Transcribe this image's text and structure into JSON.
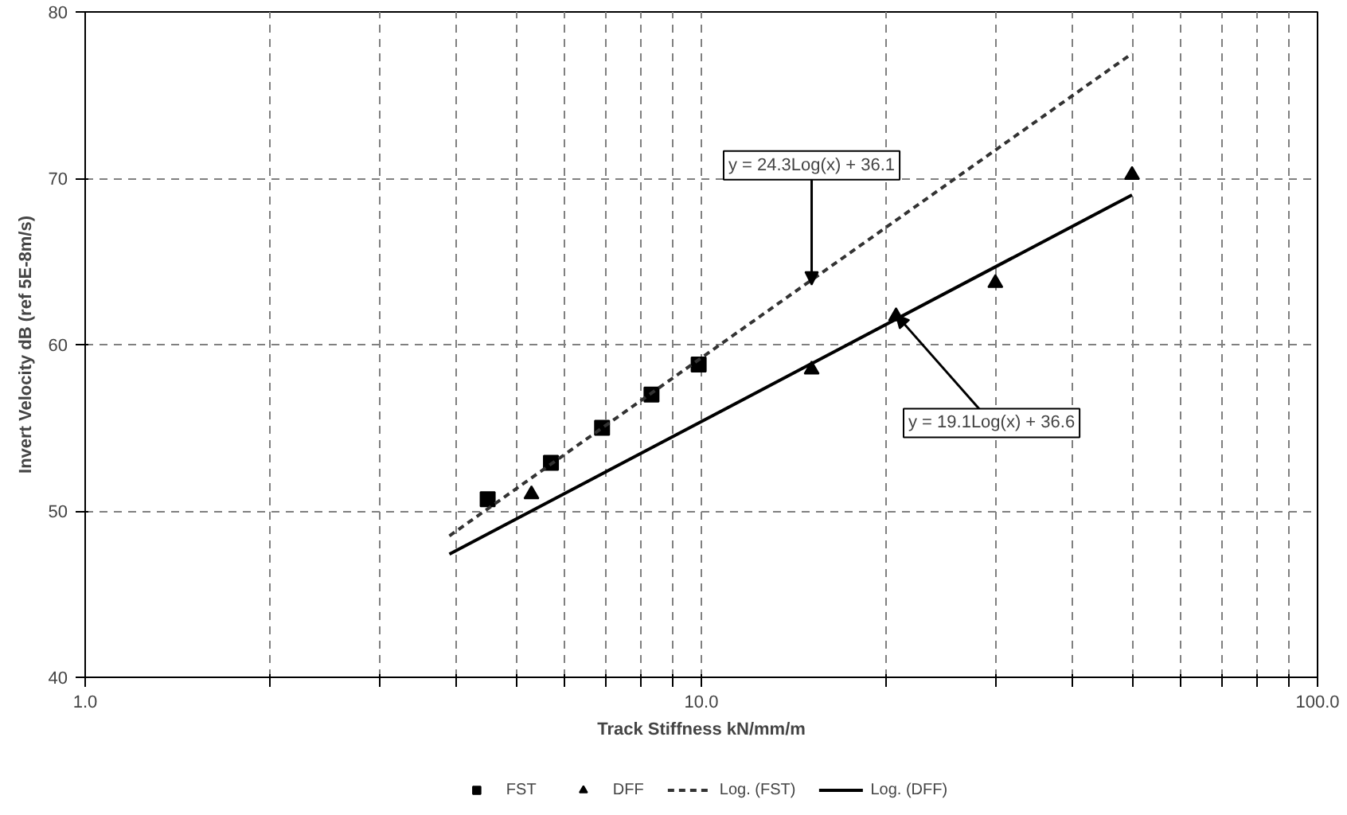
{
  "chart_data": {
    "type": "scatter",
    "xlabel": "Track Stiffness kN/mm/m",
    "ylabel": "Invert Velocity dB (ref 5E-8m/s)",
    "log": "x",
    "xlim": [
      1,
      100
    ],
    "ylim": [
      40,
      80
    ],
    "xticks": [
      {
        "value": 1,
        "label": "1.0"
      },
      {
        "value": 2,
        "label": null
      },
      {
        "value": 3,
        "label": null
      },
      {
        "value": 4,
        "label": null
      },
      {
        "value": 5,
        "label": null
      },
      {
        "value": 6,
        "label": null
      },
      {
        "value": 7,
        "label": null
      },
      {
        "value": 8,
        "label": null
      },
      {
        "value": 9,
        "label": null
      },
      {
        "value": 10,
        "label": "10.0"
      },
      {
        "value": 20,
        "label": null
      },
      {
        "value": 30,
        "label": null
      },
      {
        "value": 40,
        "label": null
      },
      {
        "value": 50,
        "label": null
      },
      {
        "value": 60,
        "label": null
      },
      {
        "value": 70,
        "label": null
      },
      {
        "value": 80,
        "label": null
      },
      {
        "value": 90,
        "label": null
      },
      {
        "value": 100,
        "label": "100.0"
      }
    ],
    "yticks": [
      40,
      50,
      60,
      70,
      80
    ],
    "grid": true,
    "legend": "bottom",
    "series": [
      {
        "name": "FST",
        "marker": "square",
        "color": "#000000",
        "x": [
          4.5,
          5.7,
          6.9,
          8.3,
          9.9
        ],
        "values": [
          50.7,
          52.9,
          55.0,
          57.0,
          58.8
        ]
      },
      {
        "name": "DFF",
        "marker": "triangle",
        "color": "#000000",
        "x": [
          5.3,
          15.1,
          20.7,
          30,
          50
        ],
        "values": [
          51.0,
          58.5,
          61.7,
          63.7,
          70.2
        ]
      },
      {
        "name": "Log. (FST)",
        "type": "line",
        "line_style": "dashed",
        "color": "#333333",
        "x": [
          3.9,
          50
        ],
        "values": [
          48.5,
          77.5
        ]
      },
      {
        "name": "Log. (DFF)",
        "type": "line",
        "line_style": "solid",
        "color": "#000000",
        "x": [
          3.9,
          50
        ],
        "values": [
          47.4,
          69.0
        ]
      }
    ],
    "annotations": [
      {
        "text": "y = 24.3Log(x) + 36.1",
        "x": 15.1,
        "y": 63.6
      },
      {
        "text": "y = 19.1Log(x) + 36.6",
        "x": 20.7,
        "y": 61.8
      }
    ]
  }
}
